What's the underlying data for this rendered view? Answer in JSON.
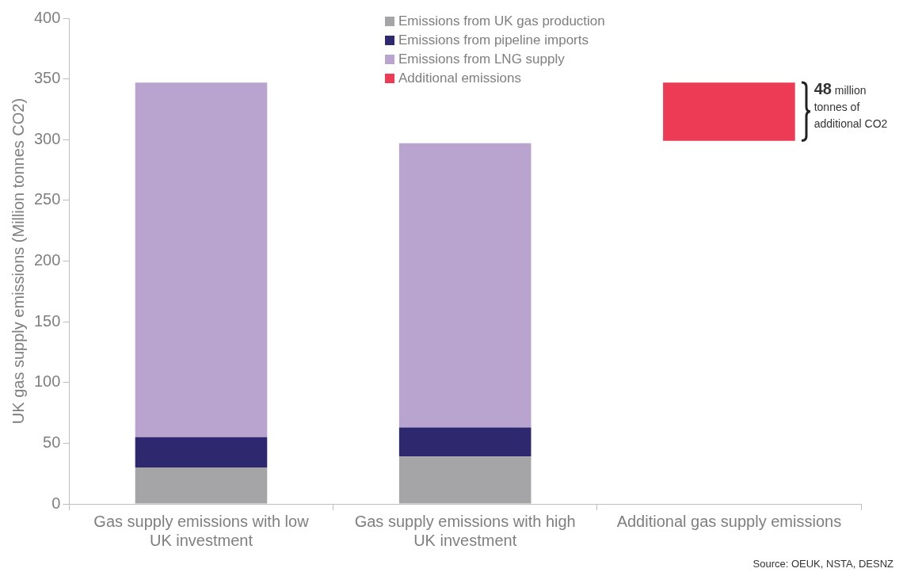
{
  "chart_data": {
    "type": "bar",
    "stacked": true,
    "ylabel": "UK gas supply emissions (Million tonnes CO2)",
    "categories": [
      "Gas supply emissions with low UK investment",
      "Gas supply emissions with high UK investment",
      "Additional gas supply emissions"
    ],
    "series": [
      {
        "name": "Emissions from UK gas production",
        "color": "#a5a5a7",
        "values": [
          30,
          39,
          null
        ]
      },
      {
        "name": "Emissions from pipeline imports",
        "color": "#2e286e",
        "values": [
          25,
          24,
          null
        ]
      },
      {
        "name": "Emissions from LNG supply",
        "color": "#b8a4cf",
        "values": [
          292,
          234,
          null
        ]
      },
      {
        "name": "Additional emissions",
        "color": "#ee3b55",
        "values": [
          null,
          null,
          48
        ],
        "base": [
          null,
          null,
          299
        ]
      }
    ],
    "ylim": [
      0,
      400
    ],
    "yticks": [
      0,
      50,
      100,
      150,
      200,
      250,
      300,
      350,
      400
    ],
    "grid": false,
    "legend": "top",
    "annotations": [
      "48 million tonnes of additional CO2",
      "Source: OEUK, NSTA, DESNZ"
    ]
  }
}
